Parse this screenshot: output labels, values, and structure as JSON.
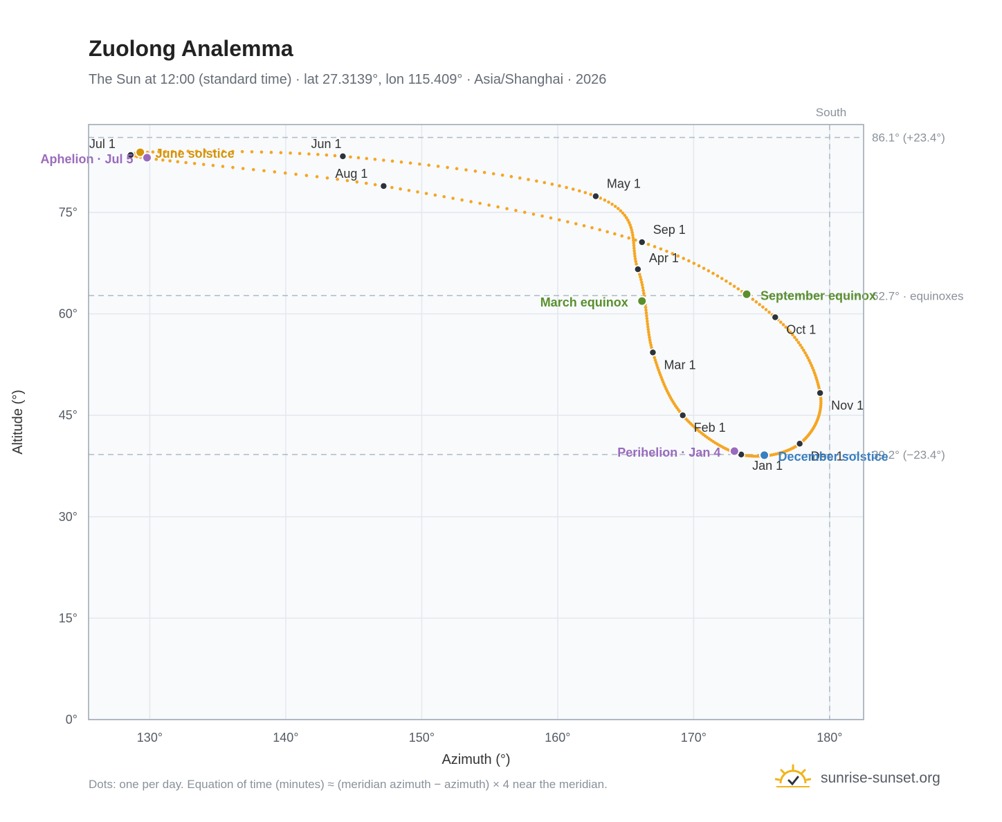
{
  "title": "Zuolong Analemma",
  "subtitle": "The Sun at 12:00 (standard time) · lat 27.3139°, lon 115.409° · Asia/Shanghai · 2026",
  "footnote": "Dots: one per day. Equation of time (minutes) ≈ (meridian azimuth − azimuth) × 4 near the meridian.",
  "brand": {
    "name": "sunrise-sunset.org",
    "icon": "sun-logo-icon",
    "color": "#f0b41c"
  },
  "colors": {
    "curve": "#f5a623",
    "month_dot": "#2d333b",
    "solstice_june": "#d4940a",
    "solstice_december": "#3a7fc1",
    "equinox": "#5a8f2e",
    "apsis": "#9a6bbd",
    "reference_line": "#b0bac4",
    "plot_bg": "#f8fafc"
  },
  "chart_data": {
    "type": "scatter",
    "title": "Zuolong Analemma",
    "xlabel": "Azimuth (°)",
    "ylabel": "Altitude (°)",
    "xlim": [
      125.5,
      182.5
    ],
    "ylim": [
      0,
      88
    ],
    "x_ticks": [
      130,
      140,
      150,
      160,
      170,
      180
    ],
    "x_tick_labels": [
      "130°",
      "140°",
      "150°",
      "160°",
      "170°",
      "180°"
    ],
    "y_ticks": [
      0,
      15,
      30,
      45,
      60,
      75
    ],
    "y_tick_labels": [
      "0°",
      "15°",
      "30°",
      "45°",
      "60°",
      "75°"
    ],
    "grid": true,
    "meridian": {
      "azimuth": 180,
      "label": "South"
    },
    "reference_lines": [
      {
        "altitude": 86.1,
        "label": "86.1° (+23.4°)"
      },
      {
        "altitude": 62.7,
        "label": "62.7° · equinoxes"
      },
      {
        "altitude": 39.2,
        "label": "39.2° (−23.4°)"
      }
    ],
    "month_points": [
      {
        "label": "Jan 1",
        "azimuth": 173.5,
        "altitude": 39.2
      },
      {
        "label": "Feb 1",
        "azimuth": 169.2,
        "altitude": 45.0
      },
      {
        "label": "Mar 1",
        "azimuth": 167.0,
        "altitude": 54.3
      },
      {
        "label": "Apr 1",
        "azimuth": 165.9,
        "altitude": 66.6
      },
      {
        "label": "May 1",
        "azimuth": 162.8,
        "altitude": 77.4
      },
      {
        "label": "Jun 1",
        "azimuth": 144.2,
        "altitude": 83.3
      },
      {
        "label": "Jul 1",
        "azimuth": 128.6,
        "altitude": 83.5
      },
      {
        "label": "Aug 1",
        "azimuth": 147.2,
        "altitude": 78.9
      },
      {
        "label": "Sep 1",
        "azimuth": 166.2,
        "altitude": 70.6
      },
      {
        "label": "Oct 1",
        "azimuth": 176.0,
        "altitude": 59.5
      },
      {
        "label": "Nov 1",
        "azimuth": 179.3,
        "altitude": 48.3
      },
      {
        "label": "Dec 1",
        "azimuth": 177.8,
        "altitude": 40.8
      }
    ],
    "events": [
      {
        "label": "March equinox",
        "azimuth": 166.2,
        "altitude": 61.9,
        "kind": "equinox"
      },
      {
        "label": "June solstice",
        "azimuth": 129.3,
        "altitude": 83.9,
        "kind": "solstice_june"
      },
      {
        "label": "September equinox",
        "azimuth": 173.9,
        "altitude": 62.9,
        "kind": "equinox"
      },
      {
        "label": "December solstice",
        "azimuth": 175.2,
        "altitude": 39.1,
        "kind": "solstice_december"
      },
      {
        "label": "Perihelion · Jan 4",
        "azimuth": 173.0,
        "altitude": 39.7,
        "kind": "apsis"
      },
      {
        "label": "Aphelion · Jul 5",
        "azimuth": 129.8,
        "altitude": 83.1,
        "kind": "apsis"
      }
    ]
  }
}
